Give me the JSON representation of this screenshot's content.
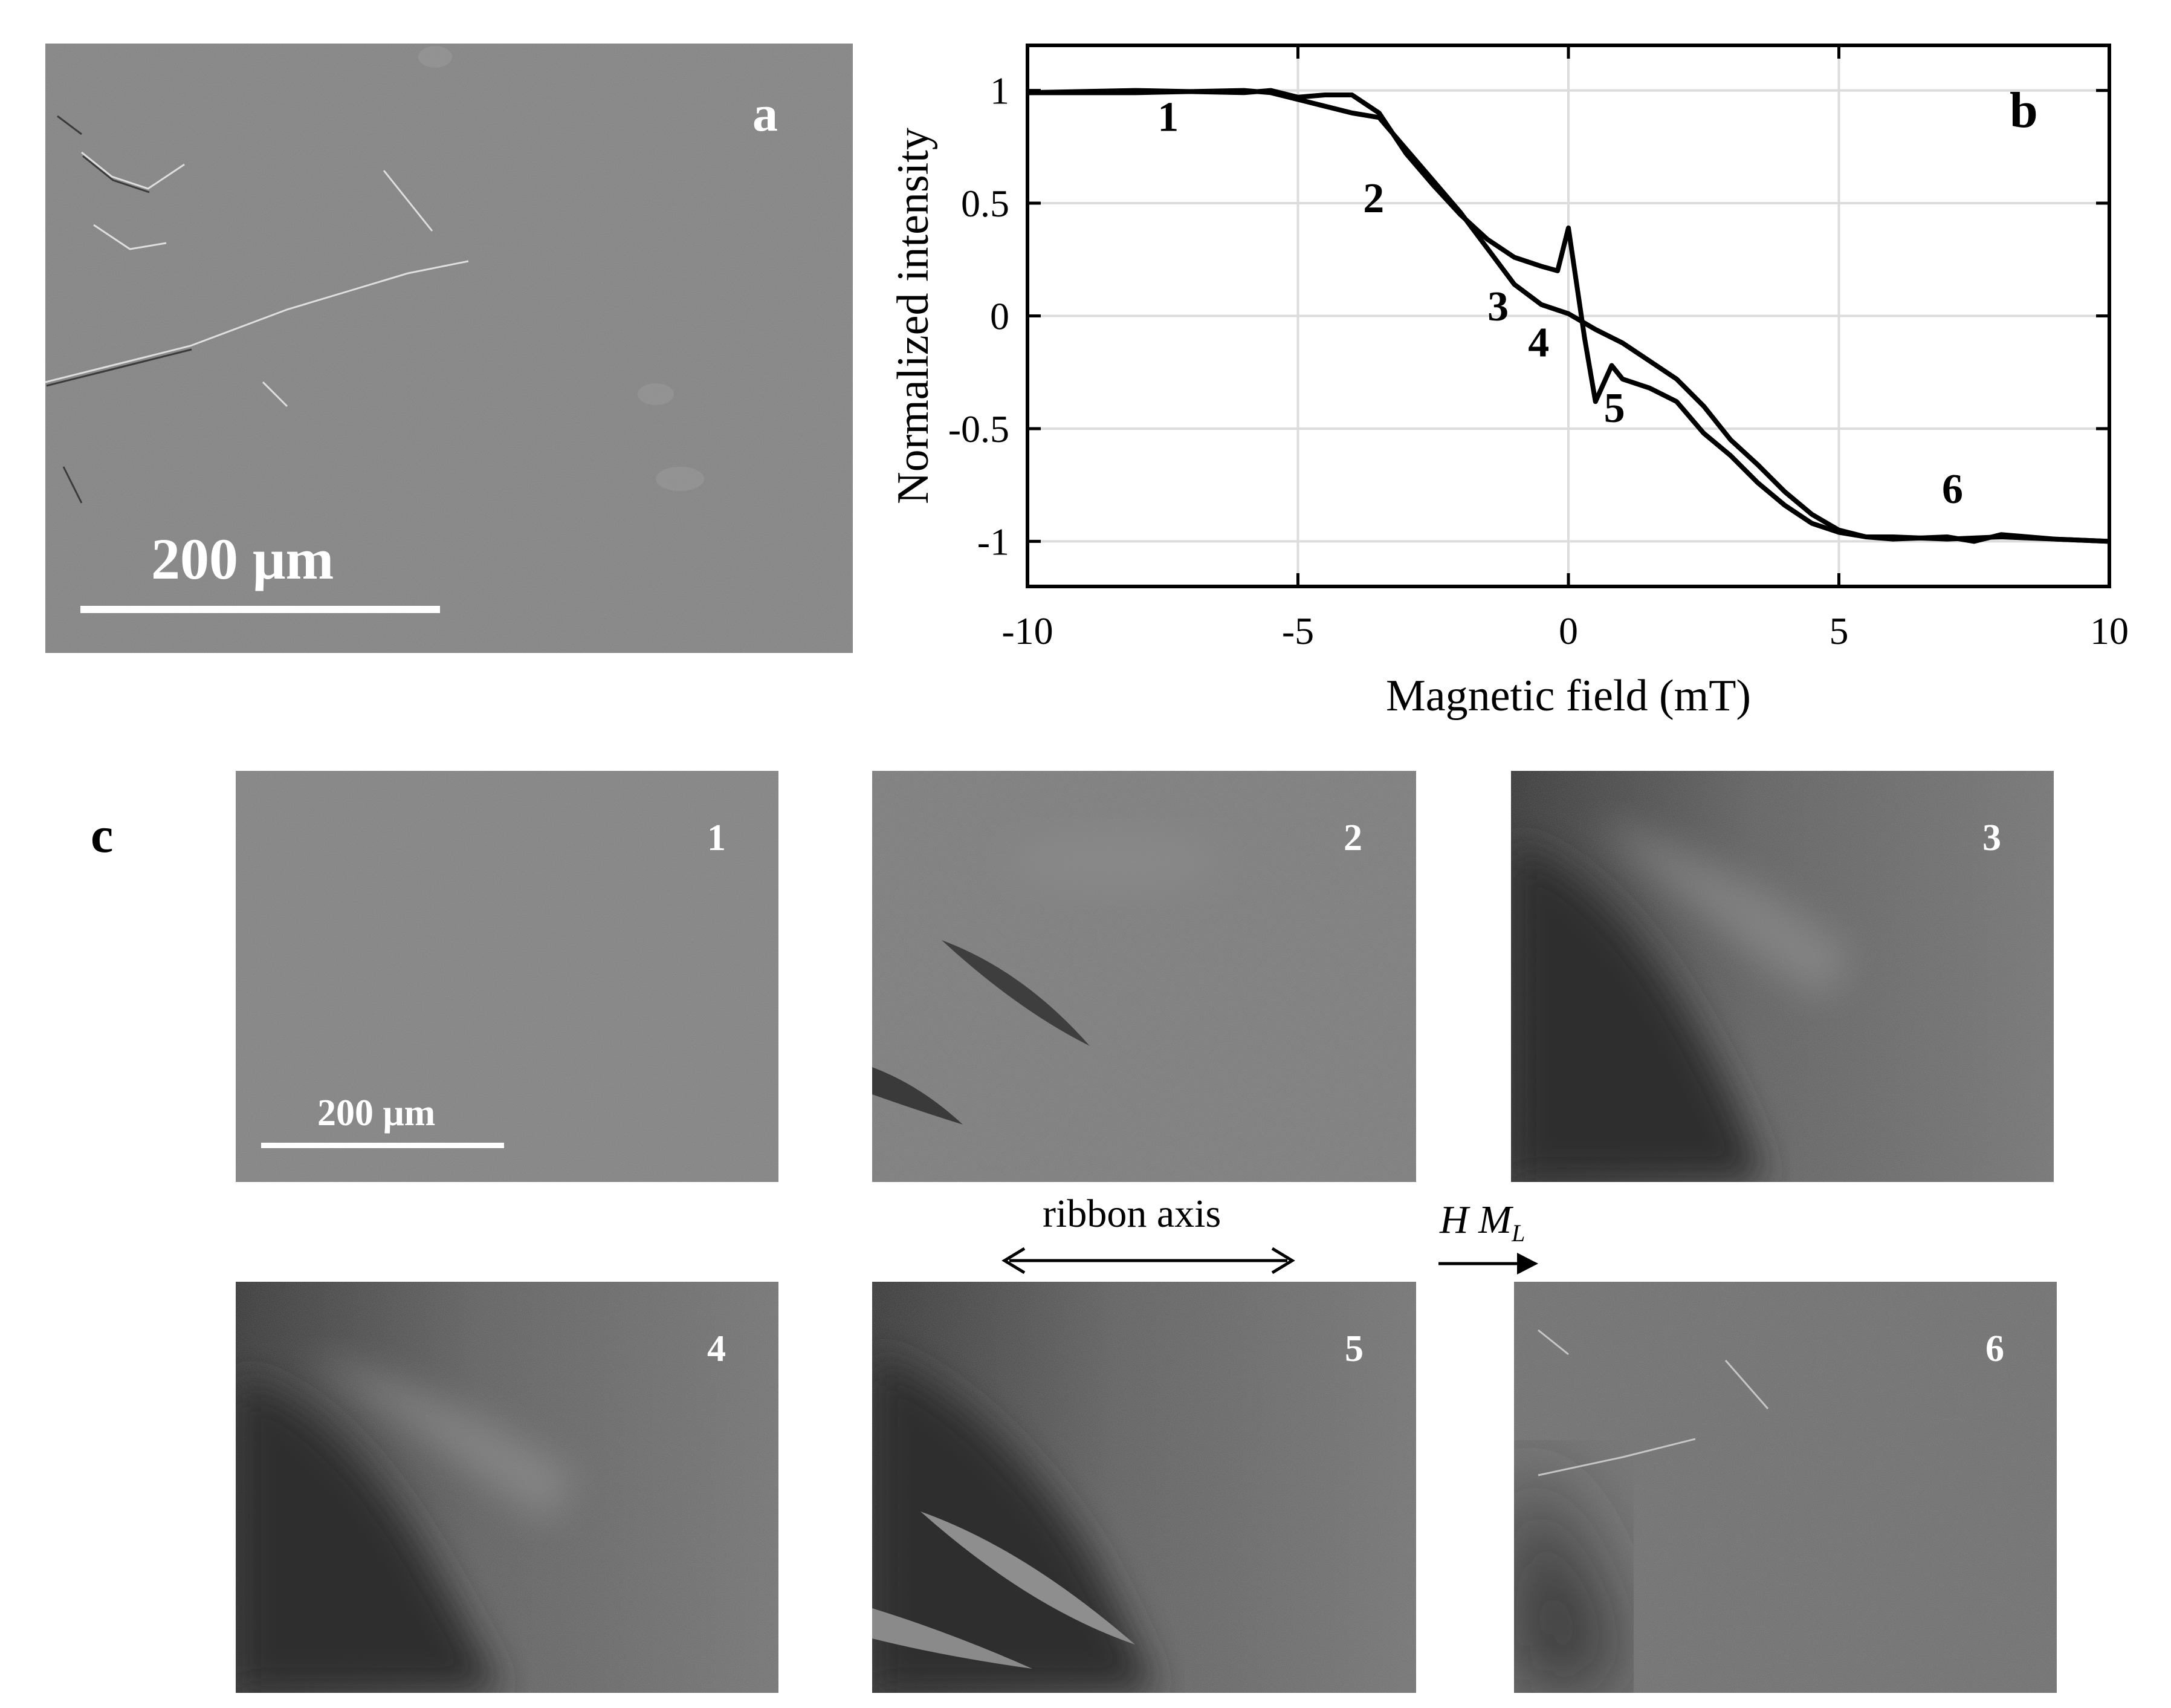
{
  "panel_a": {
    "letter": "a",
    "scale_label": "200 μm"
  },
  "panel_b": {
    "letter": "b"
  },
  "panel_c": {
    "letter": "c",
    "scale_label": "200 μm",
    "images": [
      {
        "label": "1"
      },
      {
        "label": "2"
      },
      {
        "label": "3"
      },
      {
        "label": "4"
      },
      {
        "label": "5"
      },
      {
        "label": "6"
      }
    ]
  },
  "annotations": {
    "ribbon_axis": "ribbon axis",
    "field_label_h": "H",
    "field_label_m": "M",
    "field_label_sub": "L"
  },
  "colors": {
    "micrograph_gray": "#7f7f7f",
    "dark_domain": "#3a3a3a",
    "light_domain": "#9a9a9a"
  },
  "chart_data": {
    "type": "line",
    "xlabel": "Magnetic field (mT)",
    "ylabel": "Normalized intensity",
    "xlim": [
      -10,
      10
    ],
    "ylim": [
      -1.2,
      1.2
    ],
    "xticks": [
      -10,
      -5,
      0,
      5,
      10
    ],
    "yticks": [
      1,
      0.5,
      0,
      -0.5,
      -1
    ],
    "ytick_labels": [
      "1",
      "0.5",
      "0",
      "-0.5",
      "-1"
    ],
    "grid": true,
    "series": [
      {
        "x": [
          -10,
          -8,
          -6,
          -5.5,
          -5,
          -4.5,
          -4,
          -3.5,
          -3,
          -2.5,
          -2,
          -1.5,
          -1,
          -0.5,
          -0.2,
          0,
          0.3,
          0.5,
          0.8,
          1,
          1.5,
          2,
          2.5,
          3,
          3.5,
          4,
          4.5,
          5,
          5.5,
          6,
          7,
          7.5,
          8,
          9,
          10
        ],
        "y": [
          0.99,
          1.0,
          0.99,
          1.0,
          0.97,
          0.98,
          0.98,
          0.9,
          0.72,
          0.58,
          0.45,
          0.34,
          0.26,
          0.22,
          0.2,
          0.39,
          -0.1,
          -0.38,
          -0.22,
          -0.28,
          -0.32,
          -0.38,
          -0.52,
          -0.62,
          -0.74,
          -0.84,
          -0.92,
          -0.96,
          -0.98,
          -0.99,
          -0.98,
          -1.0,
          -0.97,
          -0.99,
          -1.0
        ]
      },
      {
        "x": [
          -10,
          -8,
          -6,
          -5.5,
          -5,
          -4.5,
          -4,
          -3.5,
          -3,
          -2.5,
          -2,
          -1.5,
          -1,
          -0.5,
          0,
          0.5,
          1,
          1.5,
          2,
          2.5,
          3,
          3.5,
          4,
          4.5,
          5,
          5.5,
          6,
          7,
          8,
          9,
          10
        ],
        "y": [
          0.99,
          0.99,
          1.0,
          0.99,
          0.96,
          0.93,
          0.9,
          0.88,
          0.74,
          0.6,
          0.46,
          0.3,
          0.14,
          0.05,
          0.01,
          -0.06,
          -0.12,
          -0.2,
          -0.28,
          -0.4,
          -0.55,
          -0.66,
          -0.78,
          -0.88,
          -0.95,
          -0.98,
          -0.98,
          -0.99,
          -0.98,
          -0.99,
          -1.0
        ]
      }
    ],
    "annotations": [
      {
        "text": "1",
        "x": -7.4,
        "y": 0.82
      },
      {
        "text": "2",
        "x": -3.6,
        "y": 0.46
      },
      {
        "text": "3",
        "x": -1.3,
        "y": -0.02
      },
      {
        "text": "4",
        "x": -0.55,
        "y": -0.18
      },
      {
        "text": "5",
        "x": 0.85,
        "y": -0.47
      },
      {
        "text": "6",
        "x": 7.1,
        "y": -0.83
      }
    ]
  }
}
